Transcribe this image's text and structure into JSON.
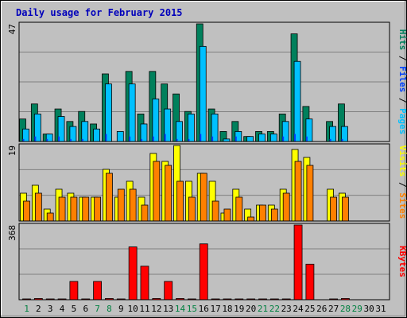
{
  "chart_data": {
    "type": "bar",
    "title": "Daily usage for February 2015",
    "colors": {
      "title": "#0000bb",
      "hits": "#00805c",
      "files": "#00c0ff",
      "pages": "#0040ff",
      "visits": "#ffff00",
      "sites": "#ff8000",
      "kbytes": "#ff0000",
      "weekday": "#000000",
      "weekend": "#008040",
      "panel": "#c0c0c0",
      "gridline": "#808080",
      "separator": "#000000"
    },
    "days": [
      {
        "label": "1",
        "weekend": true
      },
      {
        "label": "2",
        "weekend": false
      },
      {
        "label": "3",
        "weekend": false
      },
      {
        "label": "4",
        "weekend": false
      },
      {
        "label": "5",
        "weekend": false
      },
      {
        "label": "6",
        "weekend": false
      },
      {
        "label": "7",
        "weekend": true
      },
      {
        "label": "8",
        "weekend": true
      },
      {
        "label": "9",
        "weekend": false
      },
      {
        "label": "10",
        "weekend": false
      },
      {
        "label": "11",
        "weekend": false
      },
      {
        "label": "12",
        "weekend": false
      },
      {
        "label": "13",
        "weekend": false
      },
      {
        "label": "14",
        "weekend": true
      },
      {
        "label": "15",
        "weekend": true
      },
      {
        "label": "16",
        "weekend": false
      },
      {
        "label": "17",
        "weekend": false
      },
      {
        "label": "18",
        "weekend": false
      },
      {
        "label": "19",
        "weekend": false
      },
      {
        "label": "20",
        "weekend": false
      },
      {
        "label": "21",
        "weekend": true
      },
      {
        "label": "22",
        "weekend": true
      },
      {
        "label": "23",
        "weekend": false
      },
      {
        "label": "24",
        "weekend": false
      },
      {
        "label": "25",
        "weekend": false
      },
      {
        "label": "26",
        "weekend": false
      },
      {
        "label": "27",
        "weekend": false
      },
      {
        "label": "28",
        "weekend": true
      },
      {
        "label": "29",
        "weekend": true
      },
      {
        "label": "30",
        "weekend": false
      },
      {
        "label": "31",
        "weekend": false
      }
    ],
    "panels": [
      {
        "key": "hits-files-pages",
        "max_label": "47",
        "max": 47,
        "legend": [
          {
            "text": "Pages",
            "color": "#00c0ff"
          },
          {
            "text": " / ",
            "color": "#000000"
          },
          {
            "text": "Files",
            "color": "#0040ff"
          },
          {
            "text": " / ",
            "color": "#000000"
          },
          {
            "text": "Hits",
            "color": "#00805c"
          }
        ],
        "series": [
          {
            "name": "Hits",
            "color": "#00805c",
            "values": [
              9,
              15,
              3,
              13,
              8,
              12,
              7,
              27,
              0,
              28,
              11,
              28,
              23,
              19,
              12,
              47,
              13,
              4,
              8,
              2,
              4,
              4,
              11,
              43,
              14,
              0,
              8,
              15,
              0,
              0,
              0
            ]
          },
          {
            "name": "Files",
            "color": "#00c0ff",
            "values": [
              5,
              11,
              3,
              10,
              6,
              8,
              5,
              23,
              4,
              23,
              7,
              17,
              13,
              8,
              11,
              38,
              11,
              1,
              4,
              2,
              3,
              3,
              8,
              32,
              9,
              0,
              6,
              6,
              0,
              0,
              0
            ]
          },
          {
            "name": "Pages",
            "color": "#0040ff",
            "values": [
              1,
              2,
              1,
              2,
              1,
              1,
              0,
              3,
              0,
              2,
              1,
              2,
              3,
              1,
              1,
              3,
              2,
              0,
              2,
              0,
              0,
              0,
              2,
              3,
              2,
              0,
              1,
              1,
              0,
              0,
              0
            ]
          }
        ]
      },
      {
        "key": "visits-sites",
        "max_label": "19",
        "max": 19,
        "legend": [
          {
            "text": "Sites",
            "color": "#ff8000"
          },
          {
            "text": " / ",
            "color": "#000000"
          },
          {
            "text": "Visits",
            "color": "#ffff00"
          }
        ],
        "series": [
          {
            "name": "Visits",
            "color": "#ffff00",
            "values": [
              7,
              9,
              3,
              8,
              7,
              6,
              6,
              13,
              6,
              10,
              6,
              17,
              15,
              19,
              10,
              12,
              10,
              2,
              8,
              3,
              4,
              4,
              8,
              18,
              16,
              0,
              8,
              7,
              0,
              0,
              0
            ]
          },
          {
            "name": "Sites",
            "color": "#ff8000",
            "values": [
              5,
              7,
              2,
              6,
              6,
              6,
              6,
              12,
              8,
              8,
              4,
              15,
              14,
              10,
              6,
              12,
              5,
              3,
              6,
              1,
              4,
              3,
              7,
              15,
              14,
              0,
              6,
              6,
              0,
              0,
              0
            ]
          }
        ]
      },
      {
        "key": "kbytes",
        "max_label": "368",
        "max": 368,
        "legend": [
          {
            "text": "KBytes",
            "color": "#ff0000"
          }
        ],
        "series": [
          {
            "name": "KBytes",
            "color": "#ff0000",
            "values": [
              4,
              6,
              4,
              4,
              90,
              4,
              90,
              6,
              4,
              260,
              165,
              6,
              90,
              6,
              4,
              275,
              4,
              4,
              4,
              4,
              4,
              4,
              4,
              368,
              175,
              0,
              4,
              6,
              0,
              0,
              0
            ]
          }
        ]
      }
    ]
  }
}
